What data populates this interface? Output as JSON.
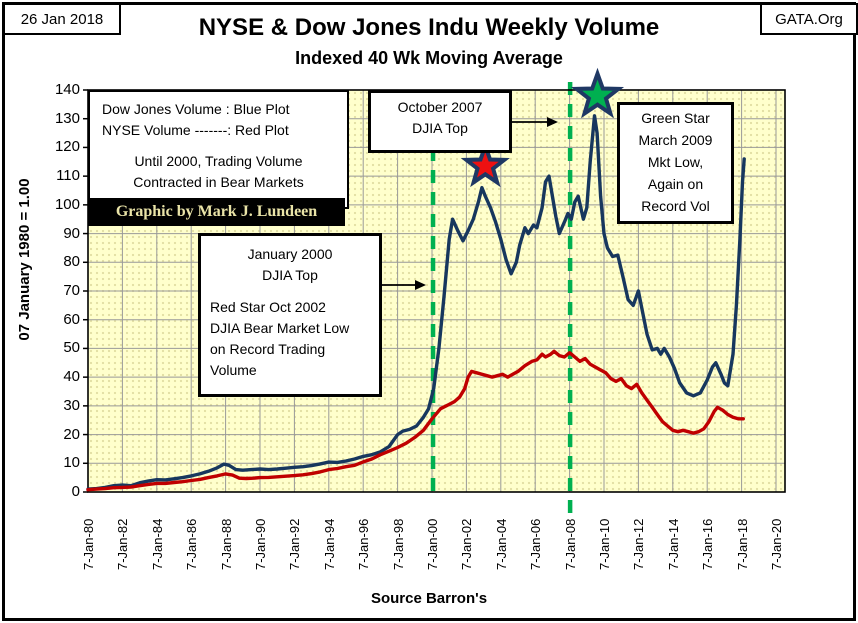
{
  "frame": {
    "date": "26 Jan 2018",
    "site": "GATA.Org"
  },
  "title": "NYSE & Dow Jones Indu Weekly Volume",
  "subtitle": "Indexed 40 Wk Moving Average",
  "legend": {
    "lines_left": [
      "Dow Jones Volume : Blue Plot",
      "NYSE Volume -------: Red Plot"
    ],
    "lines_center": [
      "Until 2000, Trading Volume",
      "Contracted in Bear Markets"
    ],
    "credit": "Graphic by Mark J. Lundeen"
  },
  "boxes": {
    "oct2007": [
      "October 2007",
      "DJIA Top"
    ],
    "green_star": [
      "Green Star",
      "March 2009",
      "Mkt Low,",
      "Again on",
      "Record Vol"
    ],
    "jan2000_center": [
      "January 2000",
      "DJIA Top"
    ],
    "jan2000_left": [
      "Red Star Oct 2002",
      "DJIA Bear Market Low",
      "on Record Trading",
      "Volume"
    ]
  },
  "axes": {
    "y_title": "07 January 1980 = 1.00",
    "source": "Source Barron's"
  },
  "colors": {
    "dow": "#17375E",
    "nyse": "#C00000",
    "plot_bg": "#FFFFCC",
    "grid": "#999999",
    "dashed_line": "#00B050",
    "star_outline": "#1F3864",
    "red_star_fill": "#EE1111",
    "green_star_fill": "#00B050",
    "credit_fg": "#EAE4A8"
  },
  "chart_data": {
    "type": "line",
    "title": "NYSE & Dow Jones Indu Weekly Volume",
    "subtitle": "Indexed 40 Wk Moving Average",
    "ylabel": "07 January 1980 = 1.00",
    "source": "Source Barron's",
    "ylim": [
      0,
      140
    ],
    "xlim": [
      1980,
      2020
    ],
    "grid": true,
    "y_ticks": [
      0,
      10,
      20,
      30,
      40,
      50,
      60,
      70,
      80,
      90,
      100,
      110,
      120,
      130,
      140
    ],
    "x_ticklabels": [
      "7-Jan-80",
      "7-Jan-82",
      "7-Jan-84",
      "7-Jan-86",
      "7-Jan-88",
      "7-Jan-90",
      "7-Jan-92",
      "7-Jan-94",
      "7-Jan-96",
      "7-Jan-98",
      "7-Jan-00",
      "7-Jan-02",
      "7-Jan-04",
      "7-Jan-06",
      "7-Jan-08",
      "7-Jan-10",
      "7-Jan-12",
      "7-Jan-14",
      "7-Jan-16",
      "7-Jan-18",
      "7-Jan-20"
    ],
    "series": [
      {
        "name": "Dow Jones Volume",
        "color": "#17375E",
        "points": [
          [
            1980.0,
            1.0
          ],
          [
            1980.5,
            1.2
          ],
          [
            1981.0,
            1.6
          ],
          [
            1981.5,
            2.2
          ],
          [
            1982.0,
            2.4
          ],
          [
            1982.5,
            2.2
          ],
          [
            1983.0,
            3.2
          ],
          [
            1983.5,
            3.8
          ],
          [
            1984.0,
            4.3
          ],
          [
            1984.5,
            4.2
          ],
          [
            1985.0,
            4.6
          ],
          [
            1985.5,
            5.0
          ],
          [
            1986.0,
            5.6
          ],
          [
            1986.5,
            6.3
          ],
          [
            1987.0,
            7.2
          ],
          [
            1987.5,
            8.4
          ],
          [
            1987.9,
            9.7
          ],
          [
            1988.2,
            9.3
          ],
          [
            1988.6,
            7.8
          ],
          [
            1989.0,
            7.6
          ],
          [
            1989.5,
            7.8
          ],
          [
            1990.0,
            8.0
          ],
          [
            1990.5,
            7.8
          ],
          [
            1991.0,
            8.0
          ],
          [
            1991.5,
            8.3
          ],
          [
            1992.0,
            8.6
          ],
          [
            1992.5,
            8.8
          ],
          [
            1993.0,
            9.2
          ],
          [
            1993.5,
            9.8
          ],
          [
            1994.0,
            10.4
          ],
          [
            1994.5,
            10.3
          ],
          [
            1995.0,
            10.8
          ],
          [
            1995.5,
            11.5
          ],
          [
            1996.0,
            12.4
          ],
          [
            1996.5,
            13.0
          ],
          [
            1997.0,
            14.0
          ],
          [
            1997.5,
            15.8
          ],
          [
            1998.0,
            20.0
          ],
          [
            1998.3,
            21.2
          ],
          [
            1998.7,
            21.8
          ],
          [
            1999.1,
            23.0
          ],
          [
            1999.5,
            26.0
          ],
          [
            1999.8,
            29.0
          ],
          [
            2000.1,
            36.0
          ],
          [
            2000.4,
            50.0
          ],
          [
            2000.7,
            68.0
          ],
          [
            2001.0,
            88.0
          ],
          [
            2001.2,
            95.0
          ],
          [
            2001.5,
            91.0
          ],
          [
            2001.8,
            87.5
          ],
          [
            2002.1,
            91.0
          ],
          [
            2002.4,
            95.0
          ],
          [
            2002.7,
            101.0
          ],
          [
            2002.9,
            106.0
          ],
          [
            2003.1,
            103.0
          ],
          [
            2003.4,
            99.0
          ],
          [
            2003.7,
            94.0
          ],
          [
            2004.0,
            88.0
          ],
          [
            2004.3,
            81.0
          ],
          [
            2004.6,
            76.0
          ],
          [
            2004.9,
            80.0
          ],
          [
            2005.1,
            86.0
          ],
          [
            2005.4,
            92.0
          ],
          [
            2005.6,
            90.0
          ],
          [
            2005.9,
            93.0
          ],
          [
            2006.1,
            92.0
          ],
          [
            2006.4,
            99.0
          ],
          [
            2006.6,
            108.0
          ],
          [
            2006.8,
            110.0
          ],
          [
            2007.0,
            103.0
          ],
          [
            2007.2,
            96.0
          ],
          [
            2007.4,
            90.0
          ],
          [
            2007.7,
            94.0
          ],
          [
            2007.9,
            97.0
          ],
          [
            2008.1,
            95.0
          ],
          [
            2008.3,
            101.0
          ],
          [
            2008.5,
            103.0
          ],
          [
            2008.8,
            95.0
          ],
          [
            2009.0,
            99.0
          ],
          [
            2009.2,
            115.0
          ],
          [
            2009.45,
            131.0
          ],
          [
            2009.6,
            125.0
          ],
          [
            2009.8,
            103.0
          ],
          [
            2010.0,
            90.0
          ],
          [
            2010.2,
            85.0
          ],
          [
            2010.5,
            82.0
          ],
          [
            2010.8,
            82.5
          ],
          [
            2011.1,
            75.0
          ],
          [
            2011.4,
            67.0
          ],
          [
            2011.7,
            65.0
          ],
          [
            2012.0,
            70.0
          ],
          [
            2012.2,
            64.0
          ],
          [
            2012.5,
            55.0
          ],
          [
            2012.8,
            49.5
          ],
          [
            2013.1,
            50.0
          ],
          [
            2013.3,
            48.0
          ],
          [
            2013.5,
            50.0
          ],
          [
            2013.8,
            47.0
          ],
          [
            2014.1,
            43.0
          ],
          [
            2014.4,
            38.0
          ],
          [
            2014.8,
            34.5
          ],
          [
            2015.2,
            33.5
          ],
          [
            2015.6,
            34.5
          ],
          [
            2016.0,
            39.0
          ],
          [
            2016.3,
            43.5
          ],
          [
            2016.5,
            45.0
          ],
          [
            2016.8,
            41.0
          ],
          [
            2017.0,
            38.0
          ],
          [
            2017.2,
            37.0
          ],
          [
            2017.5,
            48.0
          ],
          [
            2017.7,
            65.0
          ],
          [
            2017.9,
            88.0
          ],
          [
            2018.05,
            108.0
          ],
          [
            2018.15,
            116.0
          ]
        ]
      },
      {
        "name": "NYSE Volume",
        "color": "#C00000",
        "points": [
          [
            1980.0,
            0.8
          ],
          [
            1980.5,
            1.0
          ],
          [
            1981.0,
            1.2
          ],
          [
            1981.5,
            1.5
          ],
          [
            1982.0,
            1.6
          ],
          [
            1982.5,
            1.7
          ],
          [
            1983.0,
            2.2
          ],
          [
            1983.5,
            2.6
          ],
          [
            1984.0,
            3.0
          ],
          [
            1984.5,
            3.0
          ],
          [
            1985.0,
            3.3
          ],
          [
            1985.5,
            3.6
          ],
          [
            1986.0,
            4.0
          ],
          [
            1986.5,
            4.4
          ],
          [
            1987.0,
            5.0
          ],
          [
            1987.5,
            5.6
          ],
          [
            1988.0,
            6.3
          ],
          [
            1988.4,
            5.9
          ],
          [
            1988.8,
            4.8
          ],
          [
            1989.2,
            4.7
          ],
          [
            1989.6,
            4.8
          ],
          [
            1990.0,
            5.0
          ],
          [
            1990.5,
            5.1
          ],
          [
            1991.0,
            5.3
          ],
          [
            1991.5,
            5.5
          ],
          [
            1992.0,
            5.7
          ],
          [
            1992.5,
            6.0
          ],
          [
            1993.0,
            6.4
          ],
          [
            1993.5,
            7.0
          ],
          [
            1994.0,
            7.8
          ],
          [
            1994.5,
            8.2
          ],
          [
            1995.0,
            8.8
          ],
          [
            1995.5,
            9.3
          ],
          [
            1996.0,
            10.5
          ],
          [
            1996.5,
            11.5
          ],
          [
            1997.0,
            13.0
          ],
          [
            1997.5,
            14.2
          ],
          [
            1998.0,
            15.5
          ],
          [
            1998.5,
            17.0
          ],
          [
            1999.0,
            19.0
          ],
          [
            1999.5,
            21.5
          ],
          [
            2000.0,
            25.5
          ],
          [
            2000.5,
            29.0
          ],
          [
            2001.0,
            30.5
          ],
          [
            2001.3,
            31.5
          ],
          [
            2001.6,
            33.0
          ],
          [
            2001.9,
            36.0
          ],
          [
            2002.1,
            40.0
          ],
          [
            2002.3,
            42.0
          ],
          [
            2002.6,
            41.5
          ],
          [
            2002.9,
            41.0
          ],
          [
            2003.2,
            40.5
          ],
          [
            2003.5,
            40.0
          ],
          [
            2003.8,
            40.5
          ],
          [
            2004.1,
            41.0
          ],
          [
            2004.4,
            40.0
          ],
          [
            2004.7,
            41.0
          ],
          [
            2005.0,
            42.0
          ],
          [
            2005.4,
            44.0
          ],
          [
            2005.8,
            45.5
          ],
          [
            2006.1,
            46.0
          ],
          [
            2006.4,
            48.0
          ],
          [
            2006.6,
            47.0
          ],
          [
            2006.9,
            48.0
          ],
          [
            2007.1,
            49.0
          ],
          [
            2007.4,
            47.5
          ],
          [
            2007.7,
            47.0
          ],
          [
            2008.0,
            48.5
          ],
          [
            2008.3,
            47.0
          ],
          [
            2008.6,
            45.5
          ],
          [
            2008.9,
            46.5
          ],
          [
            2009.2,
            44.5
          ],
          [
            2009.5,
            43.5
          ],
          [
            2009.8,
            42.5
          ],
          [
            2010.1,
            41.5
          ],
          [
            2010.4,
            39.5
          ],
          [
            2010.7,
            38.5
          ],
          [
            2011.0,
            39.5
          ],
          [
            2011.3,
            37.0
          ],
          [
            2011.6,
            36.0
          ],
          [
            2011.9,
            37.5
          ],
          [
            2012.2,
            34.5
          ],
          [
            2012.5,
            32.0
          ],
          [
            2012.8,
            29.5
          ],
          [
            2013.1,
            27.0
          ],
          [
            2013.4,
            24.5
          ],
          [
            2013.7,
            23.0
          ],
          [
            2014.0,
            21.5
          ],
          [
            2014.3,
            21.0
          ],
          [
            2014.6,
            21.5
          ],
          [
            2014.9,
            21.0
          ],
          [
            2015.2,
            20.5
          ],
          [
            2015.5,
            21.0
          ],
          [
            2015.8,
            22.0
          ],
          [
            2016.1,
            24.5
          ],
          [
            2016.4,
            28.0
          ],
          [
            2016.6,
            29.5
          ],
          [
            2016.9,
            28.5
          ],
          [
            2017.2,
            27.0
          ],
          [
            2017.5,
            26.0
          ],
          [
            2017.8,
            25.5
          ],
          [
            2018.1,
            25.5
          ]
        ]
      }
    ],
    "markers": [
      {
        "name": "red-star",
        "year": 2003.1,
        "value": 113.5,
        "fill": "#EE1111",
        "label": "Oct 2002 DJIA Bear Market Low"
      },
      {
        "name": "green-star",
        "year": 2009.62,
        "value": 138.0,
        "fill": "#00B050",
        "label": "March 2009 Mkt Low"
      }
    ],
    "vlines": [
      {
        "year": 2000.06,
        "color": "#00B050",
        "style": "dashed",
        "label": "January 2000 DJIA Top"
      },
      {
        "year": 2008.03,
        "color": "#00B050",
        "style": "dashed",
        "label": "October 2007 DJIA Top"
      }
    ]
  }
}
